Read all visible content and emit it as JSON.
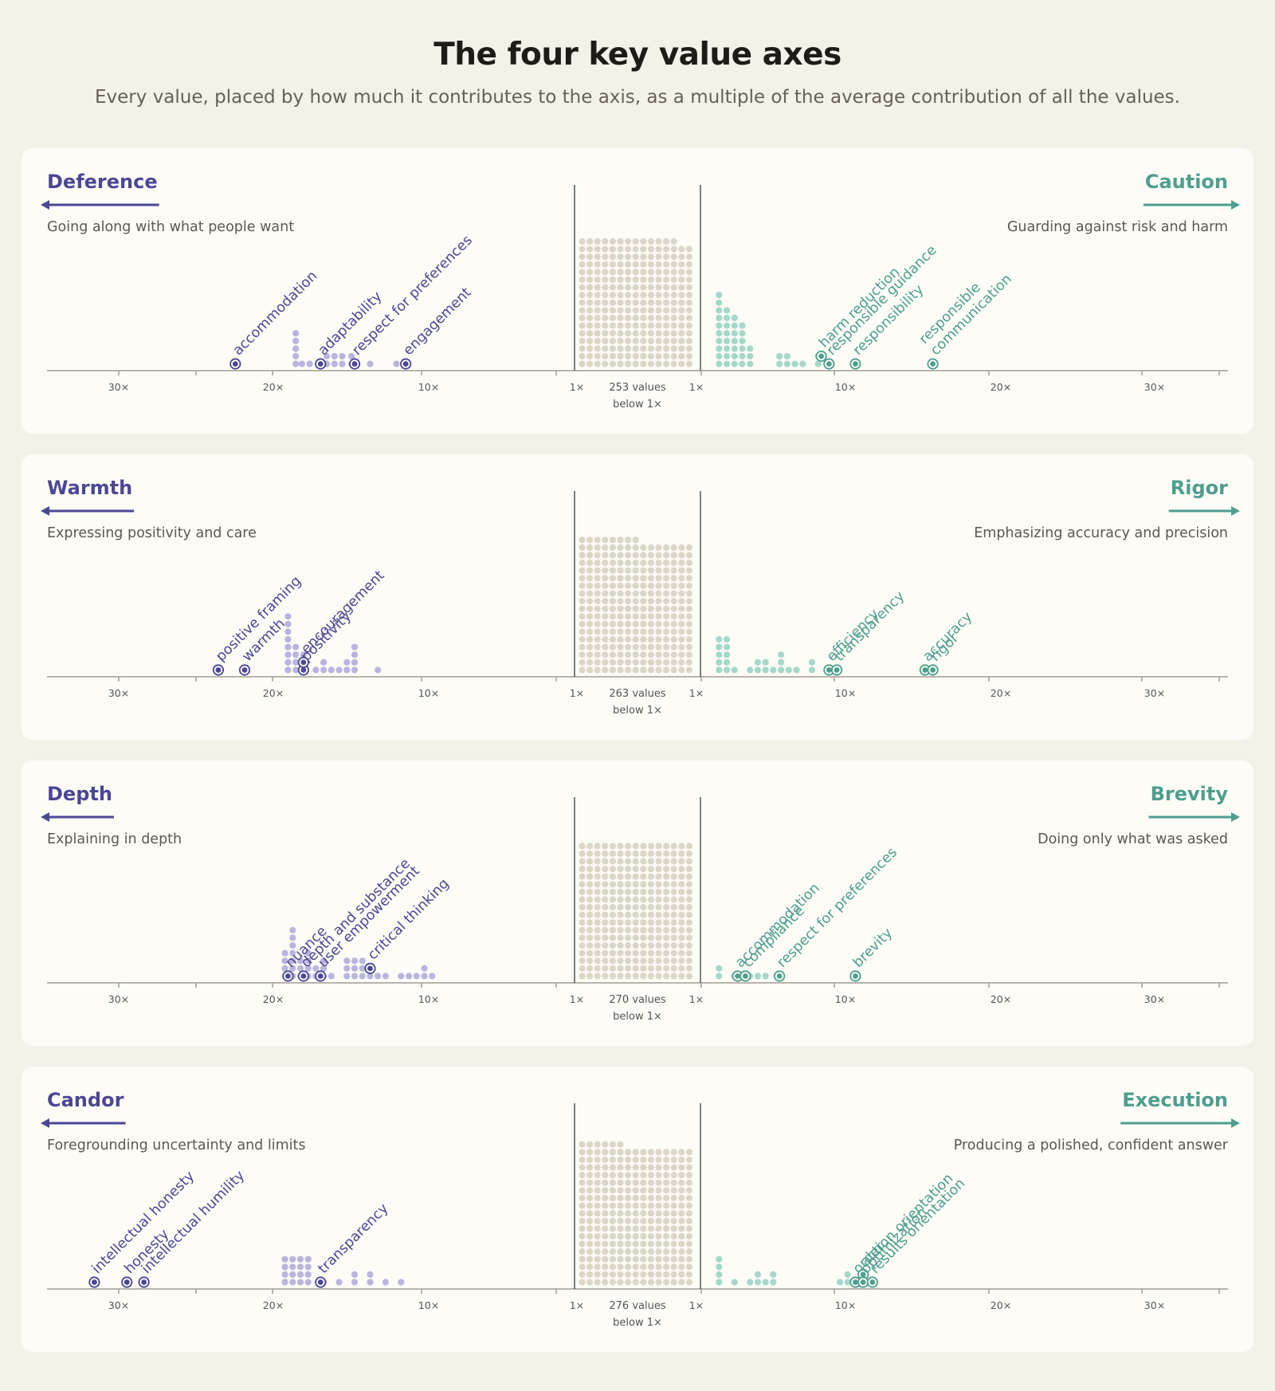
{
  "title": "The four key value axes",
  "subtitle": "Every value, placed by how much it contributes to the axis, as a multiple of the average contribution of all the values.",
  "colors": {
    "left": "#4b4795",
    "left_dot": "#b9b5df",
    "right": "#4e9e8e",
    "right_dot": "#a6d8ca",
    "neutral_dot": "#dcd6c8",
    "axis": "#a29d92",
    "tick_text": "#555",
    "background": "#f4f1e8",
    "panel": "#fdfcf7"
  },
  "chart_data": [
    {
      "type": "scatter",
      "left": {
        "name": "Deference",
        "description": "Going along with what people want"
      },
      "right": {
        "name": "Caution",
        "description": "Guarding against risk and harm"
      },
      "tick_labels": [
        "30×",
        "20×",
        "10×",
        "1×",
        "1×",
        "10×",
        "20×",
        "30×"
      ],
      "below_label": "253 values\nbelow 1×",
      "below_count": 253,
      "left_dots": [
        [
          11.6,
          1
        ],
        [
          13.3,
          1
        ],
        [
          14.5,
          2
        ],
        [
          15.1,
          2
        ],
        [
          15.6,
          2
        ],
        [
          16.1,
          2
        ],
        [
          17.2,
          1
        ],
        [
          17.7,
          1
        ],
        [
          18.1,
          5
        ]
      ],
      "right_dots": [
        [
          1.2,
          10
        ],
        [
          1.7,
          8
        ],
        [
          2.2,
          7
        ],
        [
          2.7,
          6
        ],
        [
          3.2,
          3
        ],
        [
          5.1,
          2
        ],
        [
          5.6,
          2
        ],
        [
          6.1,
          1
        ],
        [
          6.6,
          1
        ],
        [
          7.6,
          2
        ]
      ],
      "left_labeled": [
        {
          "label": "accommodation",
          "x": 22
        },
        {
          "label": "adaptability",
          "x": 16.5
        },
        {
          "label": "respect for preferences",
          "x": 14.3
        },
        {
          "label": "engagement",
          "x": 11
        }
      ],
      "right_labeled": [
        {
          "label": "harm reduction",
          "x": 7.8,
          "level": 2
        },
        {
          "label": "responsible guidance",
          "x": 8.3,
          "level": 1
        },
        {
          "label": "responsibility",
          "x": 10,
          "level": 1
        },
        {
          "label": "responsible communication",
          "lines": [
            "responsible",
            "communication"
          ],
          "x": 15,
          "level": 1
        }
      ]
    },
    {
      "type": "scatter",
      "left": {
        "name": "Warmth",
        "description": "Expressing positivity and care"
      },
      "right": {
        "name": "Rigor",
        "description": "Emphasizing accuracy and precision"
      },
      "tick_labels": [
        "30×",
        "20×",
        "10×",
        "1×",
        "1×",
        "10×",
        "20×",
        "30×"
      ],
      "below_label": "263 values\nbelow 1×",
      "below_count": 263,
      "left_dots": [
        [
          12.8,
          1
        ],
        [
          14.3,
          4
        ],
        [
          14.8,
          2
        ],
        [
          15.3,
          1
        ],
        [
          15.8,
          1
        ],
        [
          16.3,
          2
        ],
        [
          16.8,
          1
        ],
        [
          17.6,
          3
        ],
        [
          18.1,
          4
        ],
        [
          18.6,
          8
        ]
      ],
      "right_dots": [
        [
          1.2,
          5
        ],
        [
          1.7,
          5
        ],
        [
          2.2,
          1
        ],
        [
          3.2,
          1
        ],
        [
          3.7,
          2
        ],
        [
          4.2,
          2
        ],
        [
          4.7,
          1
        ],
        [
          5.2,
          3
        ],
        [
          5.7,
          1
        ],
        [
          6.2,
          1
        ],
        [
          7.2,
          2
        ]
      ],
      "left_labeled": [
        {
          "label": "positive framing",
          "x": 23.1
        },
        {
          "label": "warmth",
          "x": 21.4
        },
        {
          "label": "positivity",
          "x": 17.6
        },
        {
          "label": "encouragement",
          "x": 17.6,
          "level": 2
        }
      ],
      "right_labeled": [
        {
          "label": "efficiency",
          "x": 8.3,
          "level": 1
        },
        {
          "label": "transparency",
          "x": 8.8,
          "level": 1
        },
        {
          "label": "accuracy",
          "x": 14.5,
          "level": 1
        },
        {
          "label": "rigor",
          "x": 15,
          "level": 1
        }
      ]
    },
    {
      "type": "scatter",
      "left": {
        "name": "Depth",
        "description": "Explaining in depth"
      },
      "right": {
        "name": "Brevity",
        "description": "Doing only what was asked"
      },
      "tick_labels": [
        "30×",
        "20×",
        "10×",
        "1×",
        "1×",
        "10×",
        "20×",
        "30×"
      ],
      "below_label": "270 values\nbelow 1×",
      "below_count": 270,
      "left_dots": [
        [
          9.3,
          1
        ],
        [
          9.8,
          2
        ],
        [
          10.3,
          1
        ],
        [
          10.8,
          1
        ],
        [
          11.3,
          1
        ],
        [
          12.3,
          1
        ],
        [
          12.8,
          1
        ],
        [
          13.3,
          1
        ],
        [
          13.8,
          3
        ],
        [
          14.3,
          3
        ],
        [
          14.8,
          3
        ],
        [
          15.8,
          1
        ],
        [
          16.3,
          3
        ],
        [
          16.8,
          2
        ],
        [
          17.3,
          4
        ],
        [
          17.8,
          3
        ],
        [
          18.3,
          7
        ],
        [
          18.8,
          4
        ]
      ],
      "right_dots": [
        [
          1.2,
          2
        ],
        [
          2.2,
          1
        ],
        [
          2.7,
          1
        ],
        [
          3.2,
          1
        ],
        [
          3.7,
          1
        ],
        [
          4.2,
          1
        ]
      ],
      "left_labeled": [
        {
          "label": "nuance",
          "x": 18.6
        },
        {
          "label": "depth and substance",
          "x": 17.6
        },
        {
          "label": "user empowerment",
          "x": 16.5
        },
        {
          "label": "critical thinking",
          "x": 13.3,
          "level": 2
        }
      ],
      "right_labeled": [
        {
          "label": "accommodation",
          "x": 2.4,
          "level": 1
        },
        {
          "label": "compliance",
          "x": 2.9,
          "level": 1
        },
        {
          "label": "respect for preferences",
          "x": 5.1,
          "level": 1
        },
        {
          "label": "brevity",
          "x": 10,
          "level": 1
        }
      ]
    },
    {
      "type": "scatter",
      "left": {
        "name": "Candor",
        "description": "Foregrounding uncertainty and limits"
      },
      "right": {
        "name": "Execution",
        "description": "Producing a polished, confident answer"
      },
      "tick_labels": [
        "30×",
        "20×",
        "10×",
        "1×",
        "1×",
        "10×",
        "20×",
        "30×"
      ],
      "below_label": "276 values\nbelow 1×",
      "below_count": 276,
      "left_dots": [
        [
          11.3,
          1
        ],
        [
          12.3,
          1
        ],
        [
          13.3,
          2
        ],
        [
          14.3,
          2
        ],
        [
          15.3,
          1
        ],
        [
          16.3,
          1
        ],
        [
          17.3,
          4
        ],
        [
          17.8,
          4
        ],
        [
          18.3,
          4
        ],
        [
          18.8,
          4
        ]
      ],
      "right_dots": [
        [
          1.2,
          4
        ],
        [
          2.2,
          1
        ],
        [
          3.2,
          1
        ],
        [
          3.7,
          2
        ],
        [
          4.2,
          1
        ],
        [
          4.7,
          2
        ],
        [
          9.0,
          1
        ],
        [
          9.5,
          2
        ]
      ],
      "left_labeled": [
        {
          "label": "intellectual honesty",
          "x": 31.1
        },
        {
          "label": "honesty",
          "x": 29
        },
        {
          "label": "intellectual humility",
          "x": 27.9
        },
        {
          "label": "transparency",
          "x": 16.5
        }
      ],
      "right_labeled": [
        {
          "label": "order",
          "x": 10,
          "level": 1
        },
        {
          "label": "action orientation",
          "x": 10.5,
          "level": 2
        },
        {
          "label": "optimization",
          "x": 10.5,
          "level": 1
        },
        {
          "label": "results orientation",
          "x": 11.1,
          "level": 1
        }
      ]
    }
  ]
}
